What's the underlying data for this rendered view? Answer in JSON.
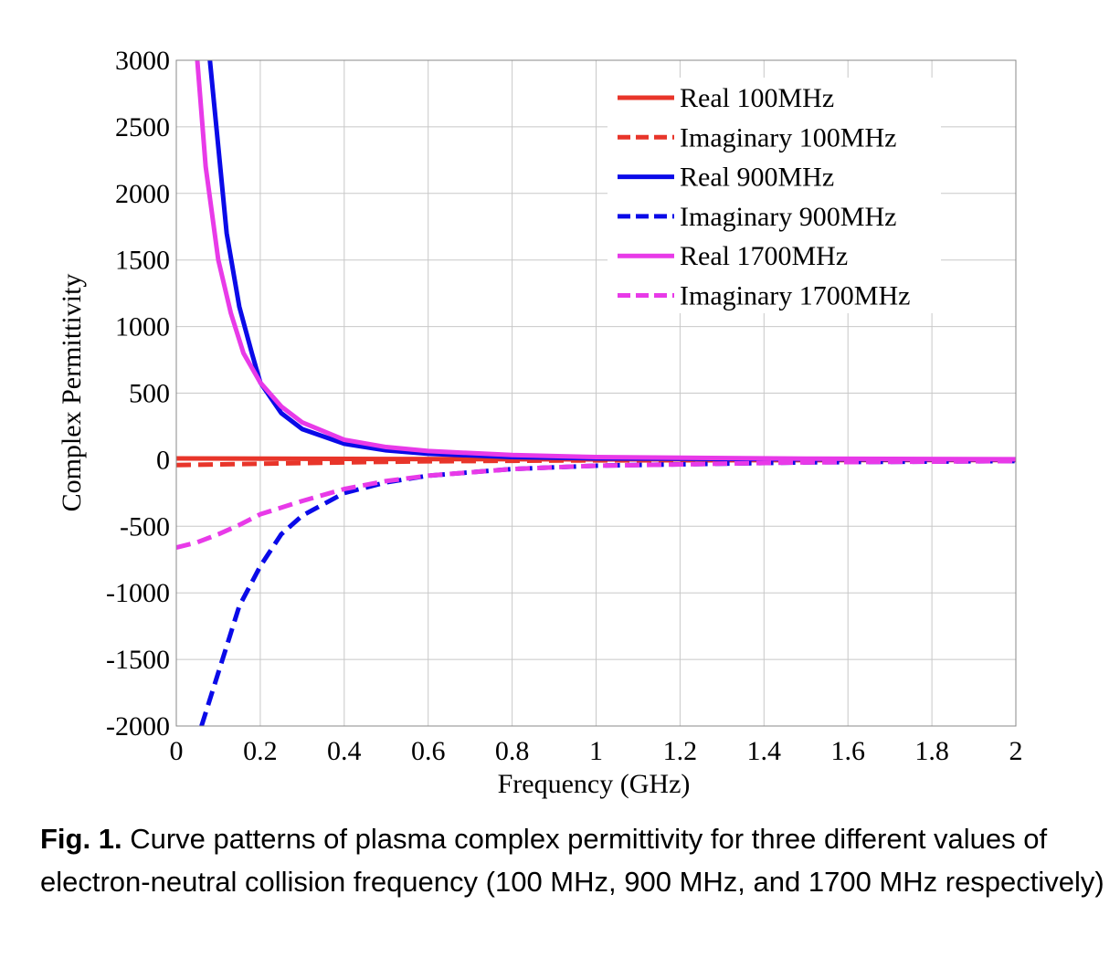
{
  "chart_data": {
    "type": "line",
    "title": "",
    "xlabel": "Frequency (GHz)",
    "ylabel": "Complex Permittivity",
    "xlim": [
      0,
      2
    ],
    "ylim": [
      -2000,
      3000
    ],
    "xticks": [
      "0",
      "0.2",
      "0.4",
      "0.6",
      "0.8",
      "1",
      "1.2",
      "1.4",
      "1.6",
      "1.8",
      "2"
    ],
    "yticks": [
      "3000",
      "2500",
      "2000",
      "1500",
      "1000",
      "500",
      "0",
      "-500",
      "-1000",
      "-1500",
      "-2000"
    ],
    "grid": true,
    "legend_position": "top-right",
    "series": [
      {
        "name": "Real 100MHz",
        "color": "#e8352a",
        "dash": false,
        "x": [
          0,
          0.5,
          1,
          1.5,
          2
        ],
        "y": [
          10,
          5,
          3,
          2,
          1
        ]
      },
      {
        "name": "Imaginary 100MHz",
        "color": "#e8352a",
        "dash": true,
        "x": [
          0,
          0.2,
          0.4,
          0.6,
          0.8,
          1,
          1.5,
          2
        ],
        "y": [
          -40,
          -30,
          -20,
          -12,
          -8,
          -5,
          -3,
          -2
        ]
      },
      {
        "name": "Real 900MHz",
        "color": "#0a0ae8",
        "dash": false,
        "x": [
          0.08,
          0.1,
          0.12,
          0.15,
          0.18,
          0.2,
          0.25,
          0.3,
          0.4,
          0.5,
          0.6,
          0.8,
          1,
          1.5,
          2
        ],
        "y": [
          3000,
          2350,
          1700,
          1150,
          800,
          580,
          350,
          230,
          120,
          70,
          45,
          20,
          10,
          4,
          2
        ]
      },
      {
        "name": "Imaginary 900MHz",
        "color": "#0a0ae8",
        "dash": true,
        "x": [
          0.06,
          0.1,
          0.15,
          0.2,
          0.25,
          0.3,
          0.4,
          0.5,
          0.6,
          0.8,
          1,
          1.5,
          2
        ],
        "y": [
          -2000,
          -1600,
          -1100,
          -800,
          -560,
          -420,
          -250,
          -170,
          -120,
          -70,
          -45,
          -20,
          -10
        ]
      },
      {
        "name": "Real 1700MHz",
        "color": "#e83ae8",
        "dash": false,
        "x": [
          0.05,
          0.07,
          0.1,
          0.13,
          0.16,
          0.2,
          0.25,
          0.3,
          0.4,
          0.5,
          0.6,
          0.8,
          1,
          1.5,
          2
        ],
        "y": [
          3000,
          2200,
          1500,
          1100,
          800,
          580,
          400,
          280,
          150,
          95,
          65,
          35,
          20,
          8,
          4
        ]
      },
      {
        "name": "Imaginary 1700MHz",
        "color": "#e83ae8",
        "dash": true,
        "x": [
          0,
          0.05,
          0.1,
          0.15,
          0.2,
          0.3,
          0.4,
          0.5,
          0.6,
          0.8,
          1,
          1.5,
          2
        ],
        "y": [
          -660,
          -620,
          -560,
          -490,
          -410,
          -310,
          -220,
          -160,
          -120,
          -70,
          -45,
          -20,
          -10
        ]
      }
    ]
  },
  "caption": {
    "label": "Fig. 1.",
    "text": " Curve patterns of plasma complex permittivity for three different values of electron-neutral collision frequency (100 MHz, 900 MHz, and 1700 MHz respectively)"
  }
}
